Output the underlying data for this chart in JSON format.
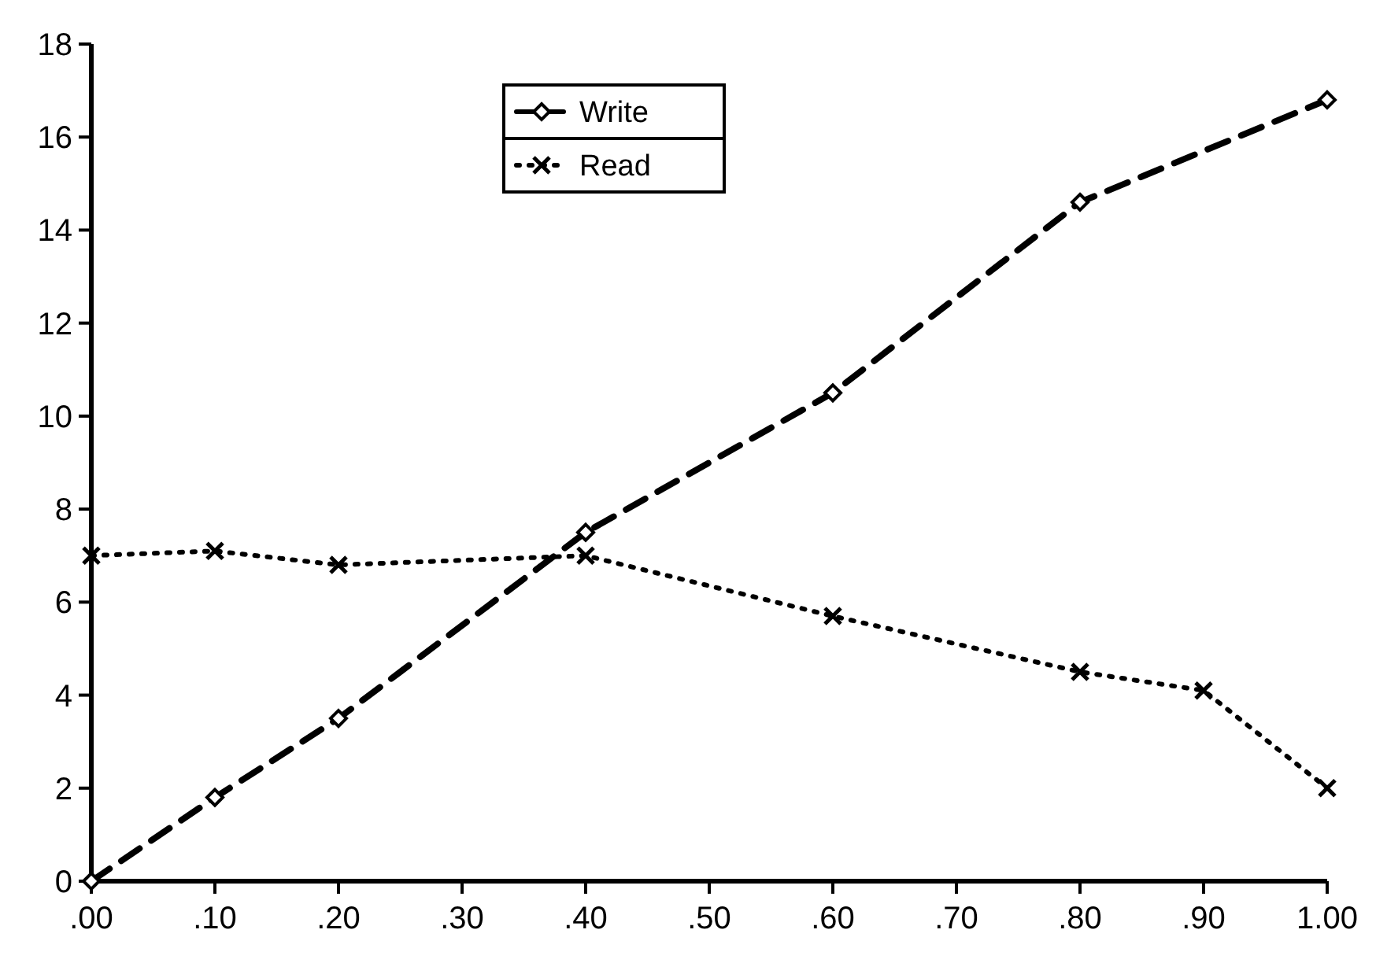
{
  "chart_data": {
    "type": "line",
    "x": [
      0,
      0.1,
      0.2,
      0.4,
      0.6,
      0.8,
      0.9,
      1.0
    ],
    "series": [
      {
        "name": "Write",
        "color": "#000000",
        "marker": "diamond",
        "line_style": "dashed",
        "values": [
          0,
          1.8,
          3.5,
          7.5,
          10.5,
          14.6,
          null,
          16.8
        ]
      },
      {
        "name": "Read",
        "color": "#000000",
        "marker": "cross",
        "line_style": "dotted",
        "values": [
          7.0,
          7.1,
          6.8,
          7.0,
          5.7,
          4.5,
          4.1,
          2.0
        ]
      }
    ],
    "xlim": [
      0,
      1
    ],
    "ylim": [
      0,
      18
    ],
    "xticks": [
      {
        "value": 0,
        "label": ".00"
      },
      {
        "value": 0.1,
        "label": ".10"
      },
      {
        "value": 0.2,
        "label": ".20"
      },
      {
        "value": 0.3,
        "label": ".30"
      },
      {
        "value": 0.4,
        "label": ".40"
      },
      {
        "value": 0.5,
        "label": ".50"
      },
      {
        "value": 0.6,
        "label": ".60"
      },
      {
        "value": 0.7,
        "label": ".70"
      },
      {
        "value": 0.8,
        "label": ".80"
      },
      {
        "value": 0.9,
        "label": ".90"
      },
      {
        "value": 1,
        "label": "1.00"
      }
    ],
    "yticks": [
      0,
      2,
      4,
      6,
      8,
      10,
      12,
      14,
      16,
      18
    ],
    "grid": false,
    "legend": "top"
  }
}
